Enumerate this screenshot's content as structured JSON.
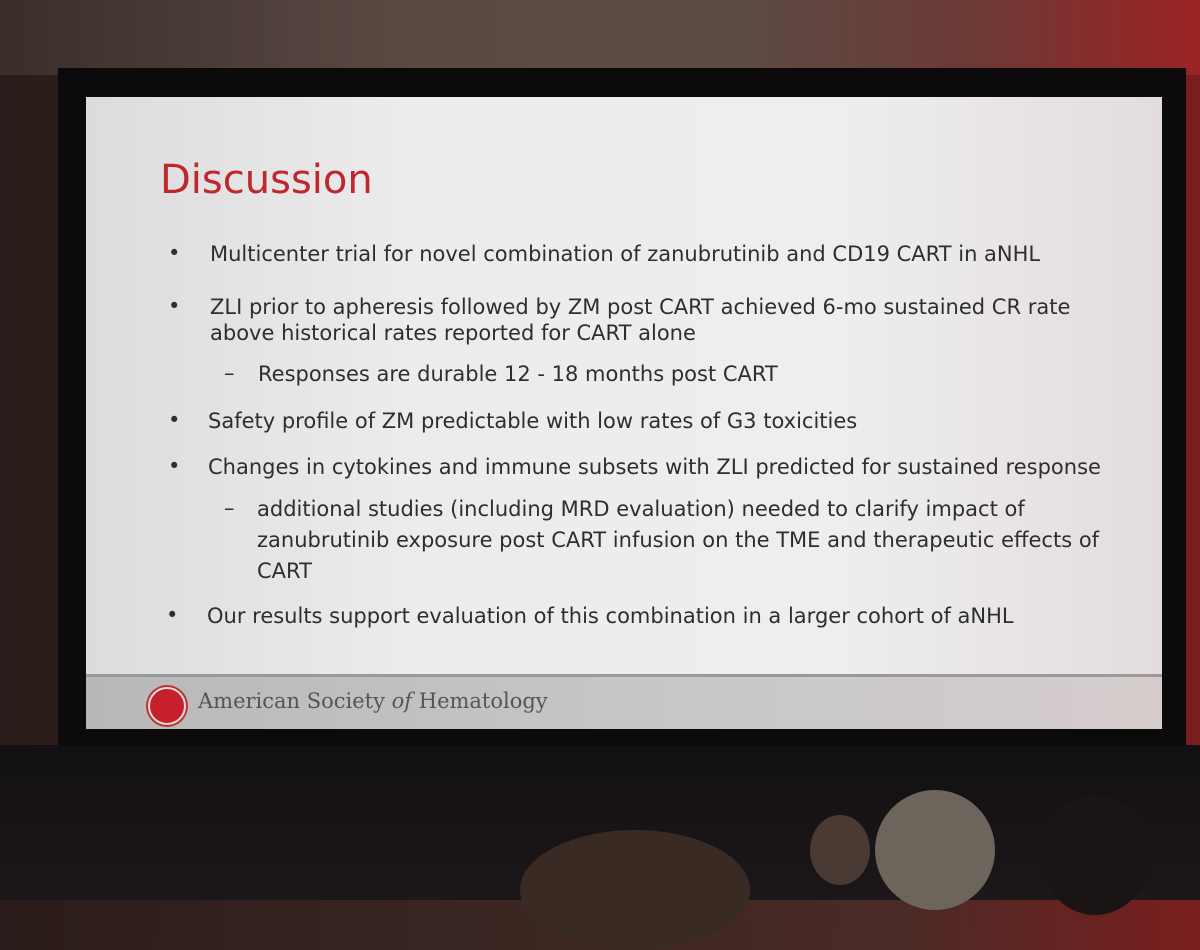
{
  "slide": {
    "title": "Discussion",
    "bullets": [
      {
        "text": "Multicenter trial for novel combination of zanubrutinib and CD19 CART in aNHL"
      },
      {
        "line1": "ZLI prior to apheresis followed by ZM post CART achieved 6-mo sustained CR rate",
        "line2": "above historical rates reported for CART alone",
        "sub": "Responses are durable 12 - 18 months post CART"
      },
      {
        "text": "Safety profile of ZM predictable with low rates of G3 toxicities"
      },
      {
        "text": "Changes in cytokines and immune subsets with ZLI predicted for sustained response",
        "sub_line1": "additional studies (including MRD evaluation) needed to clarify impact of",
        "sub_line2": "zanubrutinib exposure post CART infusion on the TME and therapeutic effects of",
        "sub_line3": "CART"
      },
      {
        "text": "Our results support evaluation of this combination in a larger cohort of aNHL"
      }
    ],
    "footer": {
      "org_pre": "American Society ",
      "org_of": "of",
      "org_post": " Hematology",
      "logo_text": "AMERICAN SOCIETY OF HEMATOLOGY"
    },
    "accent_color": "#c0272d"
  }
}
